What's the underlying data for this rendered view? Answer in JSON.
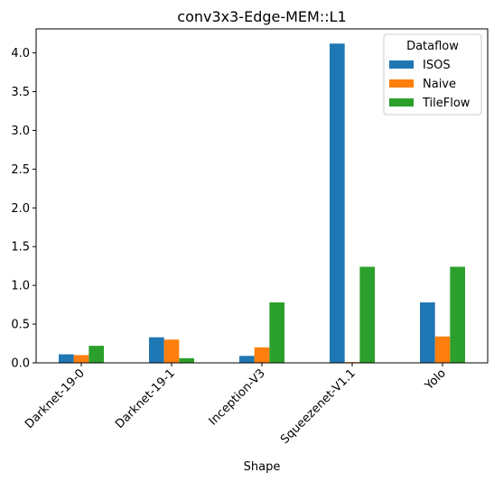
{
  "chart_data": {
    "type": "bar",
    "title": "conv3x3-Edge-MEM::L1",
    "xlabel": "Shape",
    "ylabel": "",
    "categories": [
      "Darknet-19-0",
      "Darknet-19-1",
      "Inception-V3",
      "Squeezenet-V1.1",
      "Yolo"
    ],
    "ylim": [
      0,
      4.31
    ],
    "yticks": [
      "0.0",
      "0.5",
      "1.0",
      "1.5",
      "2.0",
      "2.5",
      "3.0",
      "3.5",
      "4.0"
    ],
    "legend_title": "Dataflow",
    "legend_position": "top-right",
    "grid": false,
    "series": [
      {
        "name": "ISOS",
        "color": "#1f77b4",
        "values": [
          0.11,
          0.33,
          0.09,
          4.12,
          0.78
        ]
      },
      {
        "name": "Naive",
        "color": "#ff7f0e",
        "values": [
          0.1,
          0.3,
          0.2,
          0.01,
          0.34
        ]
      },
      {
        "name": "TileFlow",
        "color": "#2ca02c",
        "values": [
          0.22,
          0.06,
          0.78,
          1.24,
          1.24
        ]
      }
    ]
  }
}
